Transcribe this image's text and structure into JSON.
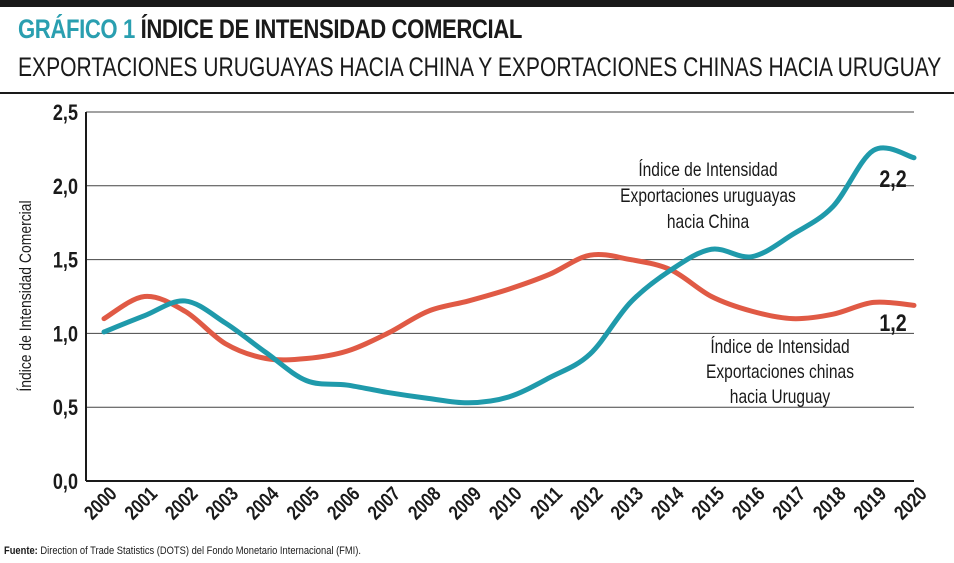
{
  "header": {
    "title_prefix": "GRÁFICO 1",
    "title_main": "ÍNDICE DE INTENSIDAD COMERCIAL",
    "subtitle": "EXPORTACIONES URUGUAYAS HACIA CHINA Y EXPORTACIONES CHINAS HACIA URUGUAY"
  },
  "source": {
    "label": "Fuente:",
    "text": "Direction of Trade Statistics (DOTS) del Fondo Monetario Internacional (FMI)."
  },
  "colors": {
    "uy_to_china": "#1f9aab",
    "china_to_uy": "#e05a45",
    "title_accent": "#2a9fb0"
  },
  "chart_data": {
    "type": "line",
    "ylabel": "Índice de Intensidad Comercial",
    "ylim": [
      0,
      2.5
    ],
    "y_ticks": [
      "0,0",
      "0,5",
      "1,0",
      "1,5",
      "2,0",
      "2,5"
    ],
    "y_tick_values": [
      0,
      0.5,
      1.0,
      1.5,
      2.0,
      2.5
    ],
    "grid": true,
    "categories": [
      "2000",
      "2001",
      "2002",
      "2003",
      "2004",
      "2005",
      "2006",
      "2007",
      "2008",
      "2009",
      "2010",
      "2011",
      "2012",
      "2013",
      "2014",
      "2015",
      "2016",
      "2017",
      "2018",
      "2019",
      "2020"
    ],
    "series": [
      {
        "name_lines": [
          "Índice de Intensidad",
          "Exportaciones uruguayas",
          "hacia China"
        ],
        "end_label": "2,2",
        "color": "#1f9aab",
        "values": [
          1.01,
          1.12,
          1.22,
          1.07,
          0.87,
          0.68,
          0.65,
          0.6,
          0.56,
          0.53,
          0.57,
          0.7,
          0.86,
          1.21,
          1.43,
          1.57,
          1.52,
          1.67,
          1.86,
          2.24,
          2.19
        ]
      },
      {
        "name_lines": [
          "Índice de Intensidad",
          "Exportaciones chinas",
          "hacia Uruguay"
        ],
        "end_label": "1,2",
        "color": "#e05a45",
        "values": [
          1.1,
          1.25,
          1.15,
          0.93,
          0.83,
          0.83,
          0.88,
          1.0,
          1.15,
          1.22,
          1.3,
          1.4,
          1.53,
          1.5,
          1.43,
          1.25,
          1.15,
          1.1,
          1.13,
          1.21,
          1.19
        ]
      }
    ]
  }
}
